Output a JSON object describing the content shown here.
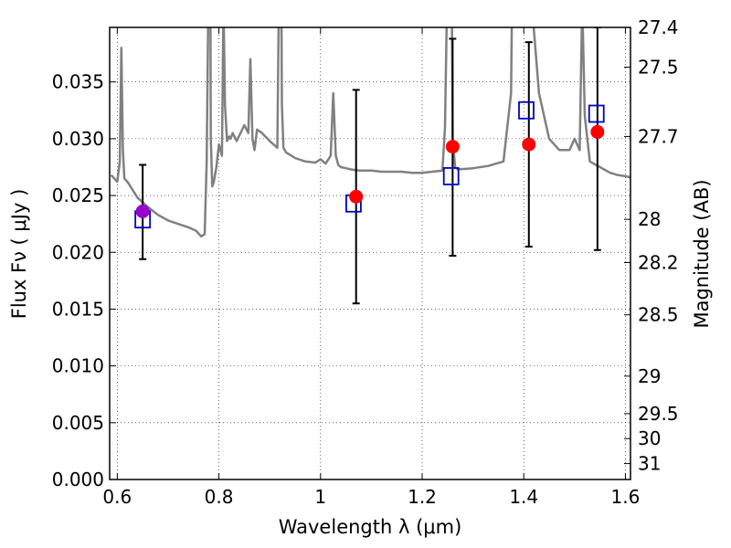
{
  "chart_data": {
    "type": "scatter",
    "title": "",
    "xlabel": "Wavelength  λ (μm)",
    "ylabel": "Flux  Fν  ( μJy )",
    "y2label": "Magnitude (AB)",
    "xlim": [
      0.585,
      1.61
    ],
    "ylim": [
      0.0,
      0.0398
    ],
    "grid": true,
    "grid_style": "dotted",
    "x_ticks": [
      0.6,
      0.8,
      1.0,
      1.2,
      1.4,
      1.6
    ],
    "x_tick_labels": [
      "0.6",
      "0.8",
      "1",
      "1.2",
      "1.4",
      "1.6"
    ],
    "y_ticks": [
      0.0,
      0.005,
      0.01,
      0.015,
      0.02,
      0.025,
      0.03,
      0.035
    ],
    "y_tick_labels": [
      "0.000",
      "0.005",
      "0.010",
      "0.015",
      "0.020",
      "0.025",
      "0.030",
      "0.035"
    ],
    "y2_ticks": [
      {
        "label": "27.4",
        "flux": 0.0398
      },
      {
        "label": "27.5",
        "flux": 0.0363
      },
      {
        "label": "27.7",
        "flux": 0.0302
      },
      {
        "label": "28",
        "flux": 0.0229
      },
      {
        "label": "28.2",
        "flux": 0.0191
      },
      {
        "label": "28.5",
        "flux": 0.0145
      },
      {
        "label": "29",
        "flux": 0.0091
      },
      {
        "label": "29.5",
        "flux": 0.0058
      },
      {
        "label": "30",
        "flux": 0.0036
      },
      {
        "label": "31",
        "flux": 0.0014
      }
    ],
    "colors": {
      "model": "#808080",
      "observed": "#000000",
      "model_photometry": "#0000cc",
      "fit_point": "#ff0000",
      "first_point": "#9900cc"
    },
    "series": [
      {
        "kind": "model_spectrum",
        "x": [
          0.588,
          0.6,
          0.605,
          0.608,
          0.611,
          0.614,
          0.62,
          0.64,
          0.66,
          0.68,
          0.7,
          0.72,
          0.74,
          0.755,
          0.765,
          0.772,
          0.776,
          0.78,
          0.782,
          0.784,
          0.787,
          0.79,
          0.795,
          0.8,
          0.806,
          0.809,
          0.812,
          0.816,
          0.82,
          0.823,
          0.827,
          0.835,
          0.85,
          0.858,
          0.862,
          0.866,
          0.87,
          0.875,
          0.885,
          0.9,
          0.915,
          0.918,
          0.921,
          0.924,
          0.927,
          0.932,
          0.95,
          0.97,
          0.99,
          1.0,
          1.01,
          1.02,
          1.025,
          1.03,
          1.035,
          1.04,
          1.05,
          1.06,
          1.075,
          1.09,
          1.1,
          1.12,
          1.14,
          1.16,
          1.18,
          1.2,
          1.22,
          1.24,
          1.245,
          1.25,
          1.256,
          1.26,
          1.265,
          1.27,
          1.3,
          1.33,
          1.36,
          1.375,
          1.38,
          1.385,
          1.39,
          1.4,
          1.41,
          1.43,
          1.45,
          1.47,
          1.49,
          1.5,
          1.51,
          1.515,
          1.52,
          1.53,
          1.55,
          1.57,
          1.585,
          1.6,
          1.61
        ],
        "y": [
          0.0268,
          0.0262,
          0.028,
          0.038,
          0.029,
          0.0265,
          0.0262,
          0.0248,
          0.024,
          0.0233,
          0.0228,
          0.0225,
          0.0222,
          0.0219,
          0.0214,
          0.0216,
          0.028,
          0.045,
          0.06,
          0.03,
          0.0258,
          0.0262,
          0.0275,
          0.0295,
          0.0285,
          0.042,
          0.033,
          0.0298,
          0.0302,
          0.03,
          0.0305,
          0.0298,
          0.0312,
          0.0305,
          0.037,
          0.03,
          0.029,
          0.0308,
          0.0305,
          0.0298,
          0.0292,
          0.042,
          0.06,
          0.033,
          0.0292,
          0.0288,
          0.0283,
          0.028,
          0.0279,
          0.0282,
          0.0278,
          0.0285,
          0.034,
          0.0285,
          0.0277,
          0.0275,
          0.0274,
          0.0273,
          0.0272,
          0.0272,
          0.0272,
          0.0271,
          0.0271,
          0.0271,
          0.027,
          0.027,
          0.0271,
          0.0272,
          0.031,
          0.045,
          0.06,
          0.03,
          0.0275,
          0.0273,
          0.0274,
          0.0276,
          0.028,
          0.034,
          0.055,
          0.06,
          0.04,
          0.042,
          0.045,
          0.034,
          0.03,
          0.029,
          0.029,
          0.03,
          0.029,
          0.042,
          0.032,
          0.028,
          0.0275,
          0.027,
          0.0268,
          0.0267,
          0.0266
        ]
      },
      {
        "kind": "observed_errorbars",
        "x": [
          0.65,
          1.07,
          1.26,
          1.41,
          1.545
        ],
        "y": [
          0.0236,
          0.0249,
          0.0293,
          0.0295,
          0.0306
        ],
        "yerr_low": [
          0.0194,
          0.0155,
          0.0197,
          0.0205,
          0.0202
        ],
        "yerr_high": [
          0.0277,
          0.0343,
          0.0388,
          0.0385,
          0.0398
        ]
      },
      {
        "kind": "model_photometry",
        "marker": "square",
        "x": [
          0.65,
          1.065,
          1.257,
          1.405,
          1.543
        ],
        "y": [
          0.0229,
          0.0243,
          0.0267,
          0.0325,
          0.0322
        ]
      },
      {
        "kind": "observed_points",
        "marker": "circle",
        "x": [
          0.65,
          1.07,
          1.26,
          1.41,
          1.545
        ],
        "y": [
          0.0236,
          0.0249,
          0.0293,
          0.0295,
          0.0306
        ]
      }
    ]
  }
}
